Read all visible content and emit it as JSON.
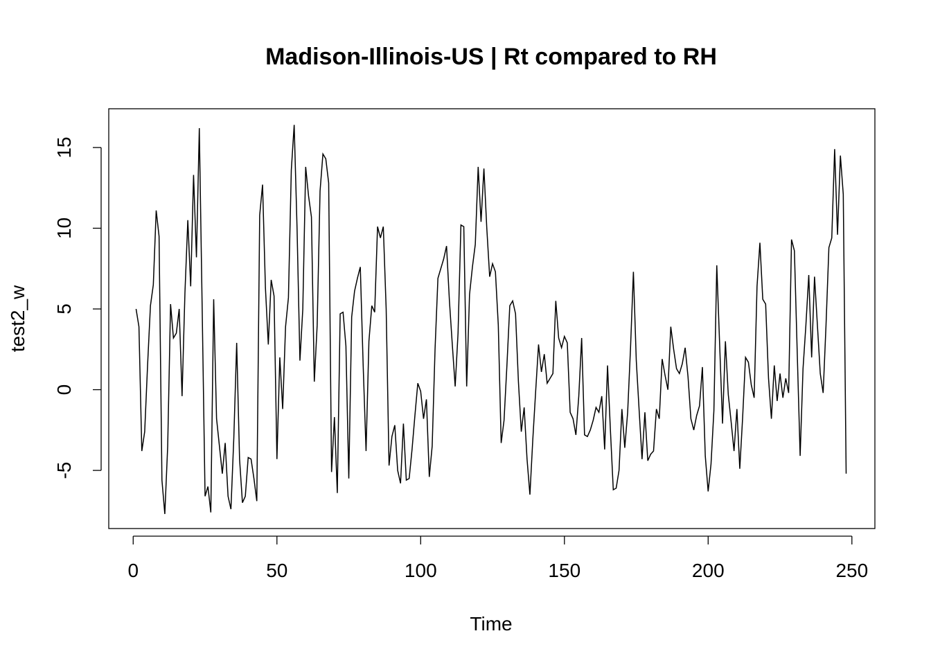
{
  "chart_data": {
    "type": "line",
    "title": "Madison-Illinois-US | Rt compared to RH",
    "xlabel": "Time",
    "ylabel": "test2_w",
    "xlim": [
      -8.5,
      258
    ],
    "ylim": [
      -8.6,
      17.4
    ],
    "xticks": [
      0,
      50,
      100,
      150,
      200,
      250
    ],
    "yticks": [
      -5,
      0,
      5,
      10,
      15
    ],
    "grid": false,
    "line_color": "#000000",
    "series": [
      {
        "x": [
          1,
          2,
          3,
          4,
          5,
          6,
          7,
          8,
          9,
          10,
          11,
          12,
          13,
          14,
          15,
          16,
          17,
          18,
          19,
          20,
          21,
          22,
          23,
          24,
          25,
          26,
          27,
          28,
          29,
          30,
          31,
          32,
          33,
          34,
          35,
          36,
          37,
          38,
          39,
          40,
          41,
          42,
          43,
          44,
          45,
          46,
          47,
          48,
          49,
          50,
          51,
          52,
          53,
          54,
          55,
          56,
          57,
          58,
          59,
          60,
          61,
          62,
          63,
          64,
          65,
          66,
          67,
          68,
          69,
          70,
          71,
          72,
          73,
          74,
          75,
          76,
          77,
          78,
          79,
          80,
          81,
          82,
          83,
          84,
          85,
          86,
          87,
          88,
          89,
          90,
          91,
          92,
          93,
          94,
          95,
          96,
          97,
          98,
          99,
          100,
          101,
          102,
          103,
          104,
          105,
          106,
          107,
          108,
          109,
          110,
          111,
          112,
          113,
          114,
          115,
          116,
          117,
          118,
          119,
          120,
          121,
          122,
          123,
          124,
          125,
          126,
          127,
          128,
          129,
          130,
          131,
          132,
          133,
          134,
          135,
          136,
          137,
          138,
          139,
          140,
          141,
          142,
          143,
          144,
          145,
          146,
          147,
          148,
          149,
          150,
          151,
          152,
          153,
          154,
          155,
          156,
          157,
          158,
          159,
          160,
          161,
          162,
          163,
          164,
          165,
          166,
          167,
          168,
          169,
          170,
          171,
          172,
          173,
          174,
          175,
          176,
          177,
          178,
          179,
          180,
          181,
          182,
          183,
          184,
          185,
          186,
          187,
          188,
          189,
          190,
          191,
          192,
          193,
          194,
          195,
          196,
          197,
          198,
          199,
          200,
          201,
          202,
          203,
          204,
          205,
          206,
          207,
          208,
          209,
          210,
          211,
          212,
          213,
          214,
          215,
          216,
          217,
          218,
          219,
          220,
          221,
          222,
          223,
          224,
          225,
          226,
          227,
          228,
          229,
          230,
          231,
          232,
          233,
          234,
          235,
          236,
          237,
          238,
          239,
          240,
          241,
          242,
          243,
          244,
          245,
          246,
          247,
          248
        ],
        "y": [
          5.0,
          3.9,
          -3.8,
          -2.6,
          1.5,
          5.2,
          6.5,
          11.1,
          9.5,
          -5.6,
          -7.7,
          -3.5,
          5.3,
          3.2,
          3.5,
          5.0,
          -0.4,
          6.0,
          10.5,
          6.4,
          13.3,
          8.2,
          16.2,
          5.0,
          -6.6,
          -6.0,
          -7.6,
          5.6,
          -1.8,
          -3.5,
          -5.2,
          -3.3,
          -6.6,
          -7.4,
          -3.0,
          2.9,
          -4.3,
          -7.0,
          -6.6,
          -4.2,
          -4.3,
          -5.5,
          -6.9,
          10.8,
          12.7,
          6.3,
          2.8,
          6.8,
          5.8,
          -4.3,
          2.0,
          -1.2,
          3.9,
          5.7,
          13.6,
          16.4,
          10.0,
          1.8,
          5.0,
          13.8,
          12.0,
          10.7,
          0.5,
          4.0,
          12.3,
          14.6,
          14.3,
          12.8,
          -5.1,
          -1.7,
          -6.4,
          4.7,
          4.8,
          2.7,
          -5.5,
          4.5,
          6.1,
          6.9,
          7.6,
          1.5,
          -3.8,
          3.0,
          5.2,
          4.8,
          10.1,
          9.4,
          10.1,
          5.0,
          -4.7,
          -2.9,
          -2.2,
          -5.0,
          -5.8,
          -2.1,
          -5.6,
          -5.5,
          -3.7,
          -1.6,
          0.4,
          -0.1,
          -1.8,
          -0.6,
          -5.4,
          -3.5,
          2.5,
          6.9,
          7.5,
          8.1,
          8.9,
          5.5,
          2.8,
          0.2,
          3.5,
          10.2,
          10.1,
          0.2,
          5.9,
          7.6,
          9.0,
          13.8,
          10.4,
          13.7,
          10.0,
          7.0,
          7.8,
          7.3,
          4.0,
          -3.3,
          -1.9,
          1.5,
          5.2,
          5.5,
          4.7,
          0.5,
          -2.6,
          -1.1,
          -4.3,
          -6.5,
          -3.1,
          -0.1,
          2.8,
          1.1,
          2.2,
          0.4,
          0.7,
          1.0,
          5.5,
          3.2,
          2.6,
          3.3,
          2.9,
          -1.4,
          -1.8,
          -2.8,
          -0.4,
          3.2,
          -2.8,
          -2.9,
          -2.5,
          -1.9,
          -1.1,
          -1.4,
          -0.4,
          -3.7,
          1.5,
          -2.5,
          -6.2,
          -6.1,
          -5.0,
          -1.2,
          -3.6,
          -1.4,
          2.6,
          7.3,
          1.8,
          -1.3,
          -4.3,
          -1.4,
          -4.4,
          -4.0,
          -3.8,
          -1.2,
          -1.8,
          1.9,
          0.9,
          0.0,
          3.9,
          2.5,
          1.3,
          1.0,
          1.6,
          2.6,
          0.8,
          -1.8,
          -2.5,
          -1.6,
          -1.0,
          1.4,
          -4.1,
          -6.3,
          -4.6,
          -1.3,
          7.7,
          2.8,
          -2.1,
          3.0,
          -0.3,
          -2.0,
          -3.8,
          -1.2,
          -4.9,
          -1.7,
          2.0,
          1.7,
          0.3,
          -0.5,
          6.4,
          9.1,
          5.6,
          5.3,
          0.7,
          -1.8,
          1.5,
          -0.7,
          1.0,
          -0.5,
          0.7,
          -0.2,
          9.3,
          8.6,
          2.2,
          -4.1,
          1.3,
          4.0,
          7.1,
          2.0,
          7.0,
          4.0,
          1.0,
          -0.2,
          4.0,
          8.8,
          9.4,
          14.9,
          9.6,
          14.5,
          12.1,
          -5.2
        ]
      }
    ]
  }
}
